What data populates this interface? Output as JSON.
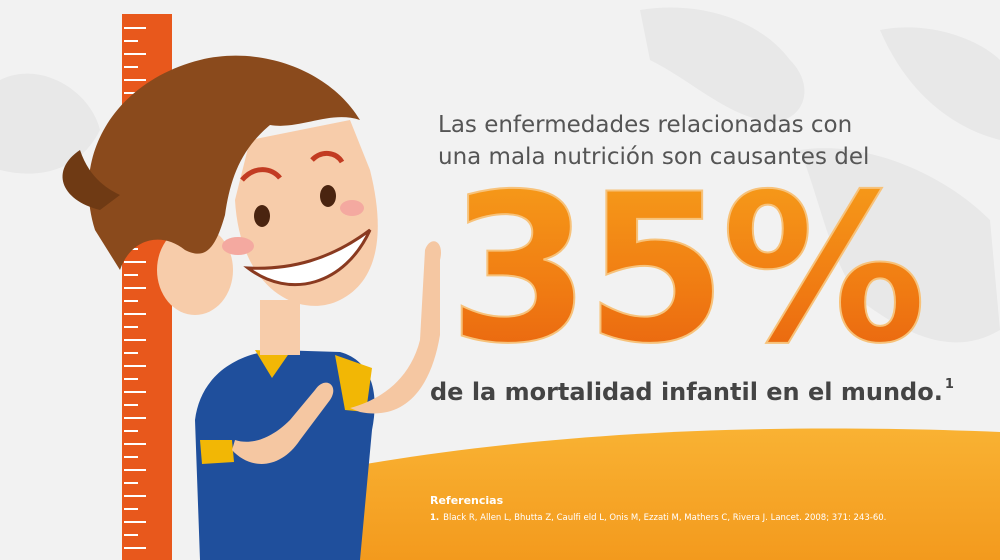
{
  "headline": {
    "intro": [
      "Las enfermedades relacionadas con",
      "una mala nutrición son causantes del"
    ],
    "figure": "35%",
    "outro": "de la mortalidad infantil en el mundo.",
    "footnote_mark": "1"
  },
  "references": {
    "title": "Referencias",
    "items": [
      {
        "number": "1.",
        "text": "Black R, Allen L, Bhutta Z, Caulfi eld L, Onis M, Ezzati M, Mathers C, Rivera J. Lancet. 2008; 371: 243-60."
      }
    ]
  }
}
